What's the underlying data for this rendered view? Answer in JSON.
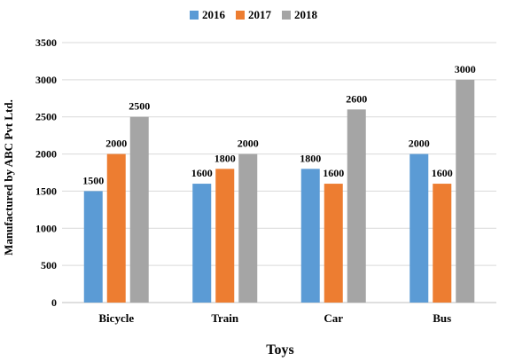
{
  "chart_data": {
    "type": "bar",
    "title": "",
    "xlabel": "Toys",
    "ylabel": "Manufactured by ABC Pvt Ltd.",
    "categories": [
      "Bicycle",
      "Train",
      "Car",
      "Bus"
    ],
    "series": [
      {
        "name": "2016",
        "color": "#5b9bd5",
        "values": [
          1500,
          1600,
          1800,
          2000
        ]
      },
      {
        "name": "2017",
        "color": "#ed7d31",
        "values": [
          2000,
          1800,
          1600,
          1600
        ]
      },
      {
        "name": "2018",
        "color": "#a5a5a5",
        "values": [
          2500,
          2000,
          2600,
          3000
        ]
      }
    ],
    "ylim": [
      0,
      3500
    ],
    "yticks": [
      0,
      500,
      1000,
      1500,
      2000,
      2500,
      3000,
      3500
    ],
    "grid": true,
    "legend_position": "top-center",
    "data_labels": true
  }
}
